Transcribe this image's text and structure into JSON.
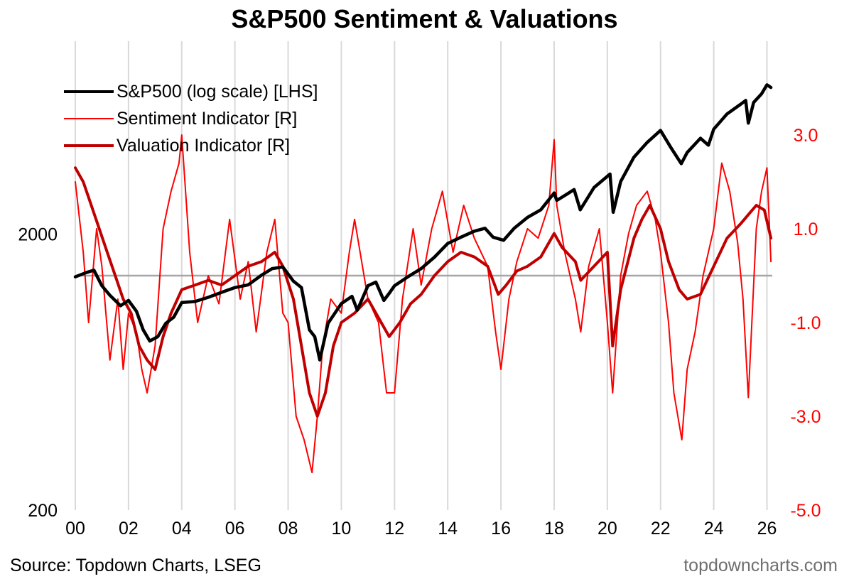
{
  "chart_data": {
    "type": "line",
    "title": "S&P500 Sentiment & Valuations",
    "source": "Source: Topdown Charts, LSEG",
    "brand": "topdowncharts.com",
    "x_ticks": [
      "00",
      "02",
      "04",
      "06",
      "08",
      "10",
      "12",
      "14",
      "16",
      "18",
      "20",
      "22",
      "24",
      "26"
    ],
    "x_range": [
      2000,
      2026.2
    ],
    "left_axis": {
      "scale": "log",
      "range": [
        200,
        10000
      ],
      "ticks": [
        "2000",
        "200"
      ],
      "tick_values": [
        2000,
        200
      ],
      "color": "#000000"
    },
    "right_axis": {
      "range": [
        -5.0,
        5.0
      ],
      "ticks": [
        "3.0",
        "1.0",
        "-1.0",
        "-3.0",
        "-5.0"
      ],
      "tick_values": [
        3,
        1,
        -1,
        -3,
        -5
      ],
      "color": "#ff0000"
    },
    "zero_line_value": 0,
    "vertical_gridlines": true,
    "legend_position": "top-left",
    "series": [
      {
        "name": "S&P500 (log scale) [LHS]",
        "axis": "left",
        "color": "#000000",
        "x": [
          2000.0,
          2000.4,
          2000.7,
          2001.0,
          2001.3,
          2001.7,
          2002.0,
          2002.3,
          2002.55,
          2002.8,
          2003.1,
          2003.4,
          2003.7,
          2004.0,
          2004.5,
          2005.0,
          2005.5,
          2006.0,
          2006.5,
          2007.0,
          2007.4,
          2007.8,
          2008.2,
          2008.5,
          2008.8,
          2009.0,
          2009.19,
          2009.5,
          2010.0,
          2010.4,
          2010.6,
          2011.0,
          2011.3,
          2011.6,
          2011.8,
          2012.0,
          2012.5,
          2013.0,
          2013.5,
          2014.0,
          2014.5,
          2015.0,
          2015.4,
          2015.7,
          2016.1,
          2016.5,
          2017.0,
          2017.5,
          2018.0,
          2018.1,
          2018.5,
          2018.75,
          2018.98,
          2019.5,
          2020.1,
          2020.22,
          2020.5,
          2021.0,
          2021.5,
          2022.0,
          2022.4,
          2022.78,
          2023.0,
          2023.5,
          2023.8,
          2024.0,
          2024.5,
          2025.0,
          2025.2,
          2025.3,
          2025.5,
          2025.8,
          2026.0,
          2026.15
        ],
        "y": [
          1400,
          1450,
          1480,
          1300,
          1200,
          1100,
          1150,
          1050,
          900,
          820,
          850,
          950,
          1000,
          1130,
          1140,
          1180,
          1230,
          1280,
          1310,
          1420,
          1500,
          1520,
          1350,
          1280,
          900,
          850,
          700,
          950,
          1120,
          1190,
          1060,
          1300,
          1340,
          1150,
          1220,
          1300,
          1400,
          1500,
          1650,
          1850,
          1950,
          2050,
          2100,
          1950,
          1900,
          2100,
          2300,
          2450,
          2820,
          2650,
          2800,
          2900,
          2450,
          2950,
          3300,
          2400,
          3100,
          3800,
          4300,
          4750,
          4100,
          3600,
          3950,
          4450,
          4200,
          4800,
          5450,
          5900,
          6100,
          5050,
          6000,
          6450,
          6950,
          6800
        ]
      },
      {
        "name": "Sentiment Indicator [R]",
        "axis": "right",
        "color": "#ff0000",
        "x": [
          2000.0,
          2000.3,
          2000.5,
          2000.8,
          2001.0,
          2001.3,
          2001.6,
          2001.8,
          2002.0,
          2002.3,
          2002.5,
          2002.7,
          2003.0,
          2003.3,
          2003.6,
          2003.9,
          2004.0,
          2004.3,
          2004.6,
          2005.0,
          2005.4,
          2005.8,
          2006.2,
          2006.5,
          2006.8,
          2007.2,
          2007.5,
          2007.8,
          2008.0,
          2008.3,
          2008.6,
          2008.9,
          2009.1,
          2009.3,
          2009.6,
          2010.0,
          2010.3,
          2010.5,
          2011.0,
          2011.4,
          2011.7,
          2012.0,
          2012.3,
          2012.7,
          2013.0,
          2013.4,
          2013.8,
          2014.2,
          2014.6,
          2015.0,
          2015.5,
          2015.8,
          2016.0,
          2016.3,
          2016.6,
          2017.0,
          2017.4,
          2017.8,
          2018.0,
          2018.1,
          2018.4,
          2018.8,
          2019.0,
          2019.3,
          2019.7,
          2020.0,
          2020.2,
          2020.5,
          2020.8,
          2021.1,
          2021.5,
          2021.8,
          2022.0,
          2022.3,
          2022.5,
          2022.8,
          2023.0,
          2023.3,
          2023.6,
          2024.0,
          2024.3,
          2024.6,
          2024.9,
          2025.1,
          2025.3,
          2025.6,
          2025.8,
          2026.0,
          2026.15
        ],
        "y": [
          2.0,
          0.5,
          -1.0,
          1.0,
          0.2,
          -1.8,
          -0.5,
          -2.0,
          -0.8,
          -1.2,
          -2.0,
          -2.5,
          -1.5,
          1.0,
          1.8,
          2.4,
          3.0,
          0.5,
          -1.0,
          0.0,
          -0.6,
          1.2,
          -0.5,
          0.3,
          -1.2,
          0.5,
          1.2,
          -0.8,
          -1.0,
          -3.0,
          -3.5,
          -4.2,
          -3.0,
          -1.5,
          -0.5,
          -0.8,
          0.5,
          1.2,
          -0.5,
          -1.0,
          -2.5,
          -2.5,
          -0.5,
          1.0,
          -0.2,
          1.0,
          1.8,
          0.5,
          1.5,
          0.8,
          0.2,
          -1.2,
          -2.0,
          -0.5,
          0.3,
          1.0,
          0.8,
          1.5,
          2.9,
          1.5,
          0.5,
          -0.5,
          -1.2,
          0.2,
          1.0,
          -1.0,
          -2.5,
          0.0,
          0.9,
          1.5,
          1.8,
          1.2,
          0.5,
          -1.0,
          -2.5,
          -3.5,
          -2.0,
          -1.2,
          0.0,
          1.0,
          2.4,
          1.8,
          0.7,
          -0.5,
          -2.6,
          1.0,
          1.8,
          2.3,
          0.3
        ]
      },
      {
        "name": "Valuation Indicator [R]",
        "axis": "right",
        "color": "#c00000",
        "x": [
          2000.0,
          2000.3,
          2000.6,
          2000.9,
          2001.2,
          2001.5,
          2001.8,
          2002.1,
          2002.4,
          2002.7,
          2003.0,
          2003.3,
          2003.6,
          2004.0,
          2004.5,
          2005.0,
          2005.5,
          2006.0,
          2006.5,
          2007.0,
          2007.5,
          2007.8,
          2008.2,
          2008.5,
          2008.8,
          2009.1,
          2009.4,
          2009.7,
          2010.0,
          2010.5,
          2011.0,
          2011.5,
          2011.8,
          2012.2,
          2012.6,
          2013.0,
          2013.5,
          2014.0,
          2014.5,
          2015.0,
          2015.5,
          2015.9,
          2016.2,
          2016.6,
          2017.0,
          2017.5,
          2018.0,
          2018.3,
          2018.8,
          2019.0,
          2019.5,
          2020.0,
          2020.2,
          2020.5,
          2021.0,
          2021.3,
          2021.6,
          2022.0,
          2022.3,
          2022.7,
          2023.0,
          2023.5,
          2024.0,
          2024.5,
          2025.0,
          2025.3,
          2025.6,
          2025.9,
          2026.15
        ],
        "y": [
          2.3,
          2.0,
          1.5,
          1.0,
          0.5,
          0.0,
          -0.5,
          -0.8,
          -1.5,
          -1.8,
          -2.0,
          -1.3,
          -0.8,
          -0.3,
          -0.2,
          -0.1,
          -0.2,
          0.0,
          0.2,
          0.3,
          0.5,
          0.2,
          -0.5,
          -1.5,
          -2.5,
          -3.0,
          -2.5,
          -1.5,
          -1.0,
          -0.8,
          -0.5,
          -1.0,
          -1.3,
          -1.0,
          -0.6,
          -0.4,
          0.0,
          0.3,
          0.5,
          0.4,
          0.2,
          -0.4,
          -0.2,
          0.1,
          0.2,
          0.4,
          0.9,
          0.6,
          0.3,
          -0.1,
          0.2,
          0.5,
          -1.5,
          -0.3,
          0.8,
          1.2,
          1.5,
          1.0,
          0.3,
          -0.3,
          -0.5,
          -0.4,
          0.2,
          0.8,
          1.1,
          1.3,
          1.5,
          1.4,
          0.8
        ]
      }
    ]
  }
}
